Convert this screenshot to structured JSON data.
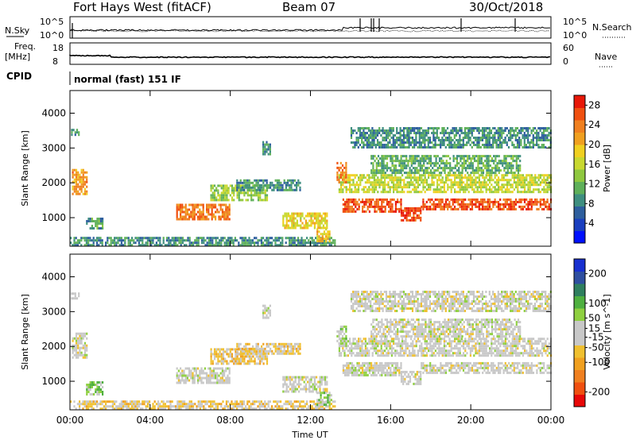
{
  "header": {
    "station": "Fort Hays West (fitACF)",
    "beam": "Beam 07",
    "date": "30/Oct/2018"
  },
  "top_panels": {
    "nsky_label": "N.Sky",
    "nsky_ticks": [
      "10^5",
      "10^0"
    ],
    "nsearch_label": "N.Search",
    "nsearch_ticks": [
      "10^5",
      "10^0"
    ],
    "freq_label_line1": "Freq.",
    "freq_label_line2": "[MHz]",
    "freq_ticks": [
      "18",
      "8"
    ],
    "nave_label": "Nave",
    "nave_ticks": [
      "60",
      "0"
    ],
    "cpid_label": "CPID",
    "cpid_value": "normal (fast) 151 IF"
  },
  "colors": {
    "power_scale": [
      "#0010ff",
      "#1a3fbf",
      "#2e5f9e",
      "#3f8f80",
      "#5fb05a",
      "#8fc83f",
      "#c8d830",
      "#f0d020",
      "#f0a020",
      "#f08020",
      "#f05010",
      "#e81808"
    ],
    "velocity_scale": [
      "#e80808",
      "#f05010",
      "#f08020",
      "#f0a020",
      "#f0c030",
      "#c8c8c8",
      "#c8c8c8",
      "#8fd040",
      "#4fb040",
      "#2f7f5f",
      "#2f4fa0",
      "#1830d0"
    ]
  },
  "chart_data": [
    {
      "type": "heatmap",
      "title": "Fort Hays West (fitACF) Beam 07 30/Oct/2018",
      "xlabel": "Time UT",
      "ylabel": "Slant Range [km]",
      "x_ticks": [
        "00:00",
        "04:00",
        "08:00",
        "12:00",
        "16:00",
        "20:00",
        "00:00"
      ],
      "xlim": [
        0,
        24
      ],
      "y_ticks": [
        1000,
        2000,
        3000,
        4000
      ],
      "ylim": [
        180,
        4650
      ],
      "colorbar": {
        "label": "Power [dB]",
        "ticks": [
          4,
          8,
          12,
          16,
          20,
          24,
          28
        ],
        "range": [
          0,
          30
        ]
      },
      "regions": [
        {
          "t0": 0.1,
          "t1": 0.8,
          "r0": 1700,
          "r1": 2400,
          "value": 22
        },
        {
          "t0": 0.05,
          "t1": 0.4,
          "r0": 3350,
          "r1": 3550,
          "value": 10
        },
        {
          "t0": 0.8,
          "t1": 1.6,
          "r0": 700,
          "r1": 1000,
          "value": 10
        },
        {
          "t0": 0.0,
          "t1": 13.2,
          "r0": 200,
          "r1": 450,
          "value": 9
        },
        {
          "t0": 5.3,
          "t1": 8.0,
          "r0": 950,
          "r1": 1400,
          "value": 24
        },
        {
          "t0": 7.0,
          "t1": 9.8,
          "r0": 1500,
          "r1": 1950,
          "value": 14
        },
        {
          "t0": 8.3,
          "t1": 11.5,
          "r0": 1800,
          "r1": 2100,
          "value": 9
        },
        {
          "t0": 9.6,
          "t1": 9.95,
          "r0": 2800,
          "r1": 3200,
          "value": 9
        },
        {
          "t0": 10.6,
          "t1": 12.8,
          "r0": 700,
          "r1": 1150,
          "value": 18
        },
        {
          "t0": 12.3,
          "t1": 13.0,
          "r0": 350,
          "r1": 700,
          "value": 20
        },
        {
          "t0": 13.4,
          "t1": 24.0,
          "r0": 1750,
          "r1": 2250,
          "value": 16
        },
        {
          "t0": 13.6,
          "t1": 16.5,
          "r0": 1200,
          "r1": 1550,
          "value": 26
        },
        {
          "t0": 16.5,
          "t1": 17.5,
          "r0": 900,
          "r1": 1300,
          "value": 27
        },
        {
          "t0": 17.5,
          "t1": 24.0,
          "r0": 1250,
          "r1": 1550,
          "value": 26
        },
        {
          "t0": 15.0,
          "t1": 22.5,
          "r0": 2300,
          "r1": 2800,
          "value": 11
        },
        {
          "t0": 14.0,
          "t1": 24.0,
          "r0": 3000,
          "r1": 3600,
          "value": 9
        },
        {
          "t0": 13.3,
          "t1": 13.8,
          "r0": 2000,
          "r1": 2600,
          "value": 24
        }
      ]
    },
    {
      "type": "heatmap",
      "xlabel": "Time UT",
      "ylabel": "Slant Range [km]",
      "x_ticks": [
        "00:00",
        "04:00",
        "08:00",
        "12:00",
        "16:00",
        "20:00",
        "00:00"
      ],
      "xlim": [
        0,
        24
      ],
      "y_ticks": [
        1000,
        2000,
        3000,
        4000
      ],
      "ylim": [
        180,
        4650
      ],
      "colorbar": {
        "label": "Velocity [m s^-1]",
        "ticks": [
          200,
          100,
          50,
          15,
          -15,
          -50,
          -100,
          -200
        ],
        "range": [
          -250,
          250
        ]
      },
      "regions": [
        {
          "t0": 0.1,
          "t1": 0.8,
          "r0": 1700,
          "r1": 2400,
          "value": 0
        },
        {
          "t0": 0.05,
          "t1": 0.4,
          "r0": 3350,
          "r1": 3550,
          "value": 0
        },
        {
          "t0": 0.8,
          "t1": 1.6,
          "r0": 600,
          "r1": 1000,
          "value": 60
        },
        {
          "t0": 0.0,
          "t1": 13.2,
          "r0": 200,
          "r1": 450,
          "value": -40
        },
        {
          "t0": 5.3,
          "t1": 8.0,
          "r0": 950,
          "r1": 1400,
          "value": 0
        },
        {
          "t0": 7.0,
          "t1": 9.8,
          "r0": 1500,
          "r1": 1950,
          "value": -60
        },
        {
          "t0": 8.3,
          "t1": 11.5,
          "r0": 1800,
          "r1": 2100,
          "value": -40
        },
        {
          "t0": 9.6,
          "t1": 9.95,
          "r0": 2800,
          "r1": 3200,
          "value": 0
        },
        {
          "t0": 10.6,
          "t1": 12.8,
          "r0": 700,
          "r1": 1150,
          "value": 0
        },
        {
          "t0": 12.3,
          "t1": 13.0,
          "r0": 350,
          "r1": 700,
          "value": 60
        },
        {
          "t0": 13.4,
          "t1": 24.0,
          "r0": 1750,
          "r1": 2250,
          "value": 0
        },
        {
          "t0": 13.6,
          "t1": 16.5,
          "r0": 1200,
          "r1": 1550,
          "value": 0
        },
        {
          "t0": 16.5,
          "t1": 17.5,
          "r0": 900,
          "r1": 1300,
          "value": 0
        },
        {
          "t0": 17.5,
          "t1": 24.0,
          "r0": 1250,
          "r1": 1550,
          "value": 0
        },
        {
          "t0": 15.0,
          "t1": 22.5,
          "r0": 2300,
          "r1": 2800,
          "value": 0
        },
        {
          "t0": 14.0,
          "t1": 24.0,
          "r0": 3000,
          "r1": 3600,
          "value": 0
        },
        {
          "t0": 13.3,
          "t1": 13.8,
          "r0": 2000,
          "r1": 2600,
          "value": 40
        }
      ]
    }
  ]
}
